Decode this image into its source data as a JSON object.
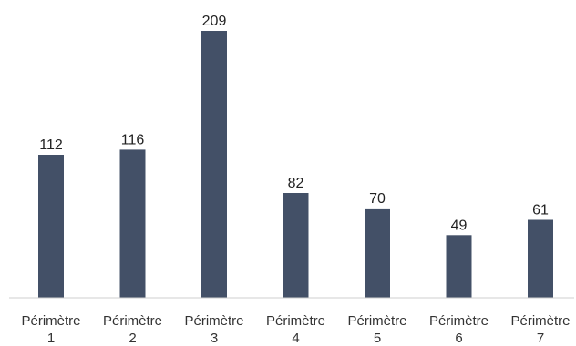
{
  "chart_data": {
    "type": "bar",
    "categories": [
      [
        "Périmètre",
        "1"
      ],
      [
        "Périmètre",
        "2"
      ],
      [
        "Périmètre",
        "3"
      ],
      [
        "Périmètre",
        "4"
      ],
      [
        "Périmètre",
        "5"
      ],
      [
        "Périmètre",
        "6"
      ],
      [
        "Périmètre",
        "7"
      ]
    ],
    "values": [
      112,
      116,
      209,
      82,
      70,
      49,
      61
    ],
    "title": "",
    "xlabel": "",
    "ylabel": "",
    "ylim": [
      0,
      209
    ],
    "grid": false,
    "legend": "none",
    "data_labels": true,
    "colors": {
      "bar": "#435067",
      "axis": "#cfcfcf",
      "label": "#222222",
      "tick": "#333333"
    }
  }
}
